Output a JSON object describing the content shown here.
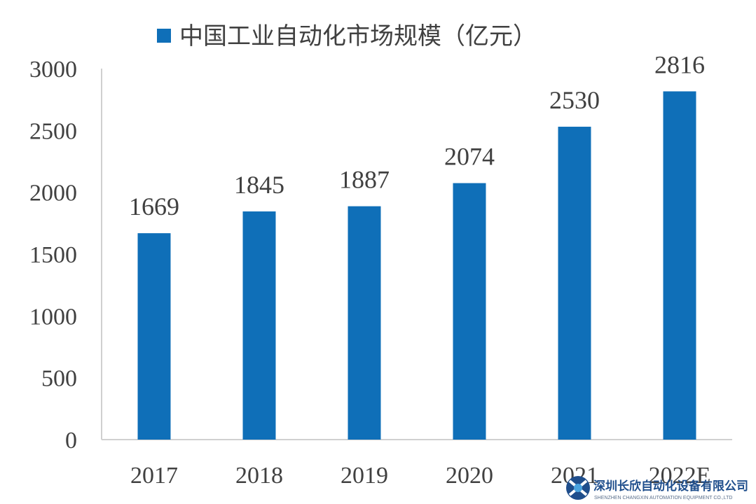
{
  "chart_data": {
    "type": "bar",
    "categories": [
      "2017",
      "2018",
      "2019",
      "2020",
      "2021",
      "2022E"
    ],
    "series": [
      {
        "name": "中国工业自动化市场规模（亿元）",
        "values": [
          1669,
          1845,
          1887,
          2074,
          2530,
          2816
        ]
      }
    ],
    "data_labels": [
      "1669",
      "1845",
      "1887",
      "2074",
      "2530",
      "2816"
    ],
    "yticks": [
      "0",
      "500",
      "1000",
      "1500",
      "2000",
      "2500",
      "3000"
    ],
    "ylim": [
      0,
      3000
    ],
    "legend_position": "top",
    "grid": false,
    "colors": {
      "bar": "#0f6fb8",
      "axis": "#d0d0d0",
      "text": "#404040"
    }
  },
  "watermark": {
    "company_cn": "深圳长欣自动化设备有限公司",
    "company_en": "SHENZHEN CHANGXIN AUTOMATION EQUIPMENT CO.,LTD",
    "logo": "changxin-logo-icon"
  }
}
